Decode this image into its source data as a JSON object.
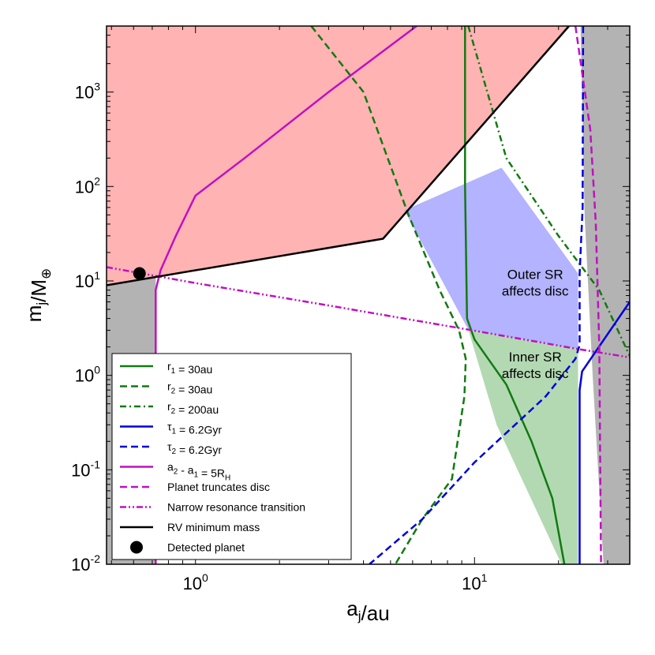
{
  "chart_data": {
    "type": "line",
    "xlabel": "a_j/au",
    "ylabel": "m_j/M_⊕",
    "xscale": "log",
    "yscale": "log",
    "xlim": [
      0.48,
      36
    ],
    "ylim": [
      0.01,
      5000
    ],
    "grid": false,
    "legend_position": "lower-left",
    "x_ticks": [
      {
        "base": "10",
        "exp": "0",
        "value": 1
      },
      {
        "base": "10",
        "exp": "1",
        "value": 10
      }
    ],
    "y_ticks": [
      {
        "base": "10",
        "exp": "-2",
        "value": 0.01
      },
      {
        "base": "10",
        "exp": "-1",
        "value": 0.1
      },
      {
        "base": "10",
        "exp": "0",
        "value": 1
      },
      {
        "base": "10",
        "exp": "1",
        "value": 10
      },
      {
        "base": "10",
        "exp": "2",
        "value": 100
      },
      {
        "base": "10",
        "exp": "3",
        "value": 1000
      }
    ],
    "regions": [
      {
        "name": "excluded-high-mass",
        "color": "#ffb3b3",
        "points": [
          [
            0.48,
            5000
          ],
          [
            21.8,
            5000
          ],
          [
            4.7,
            28
          ],
          [
            0.48,
            9
          ]
        ]
      },
      {
        "name": "outer-sr-affects-disc",
        "color": "#b3b3ff",
        "points": [
          [
            5.6,
            56
          ],
          [
            12.5,
            158
          ],
          [
            23.5,
            12
          ],
          [
            23.5,
            1.9
          ],
          [
            9.5,
            3.05
          ]
        ]
      },
      {
        "name": "inner-sr-affects-disc",
        "color": "#b3d9b3",
        "points": [
          [
            9.5,
            3.05
          ],
          [
            23.5,
            1.9
          ],
          [
            23.5,
            0.01
          ],
          [
            20.5,
            0.01
          ],
          [
            12,
            0.3
          ]
        ]
      },
      {
        "name": "grey-left",
        "color": "#b3b3b3",
        "points": [
          [
            0.48,
            9
          ],
          [
            0.72,
            11
          ],
          [
            0.72,
            0.01
          ],
          [
            0.48,
            0.01
          ]
        ]
      },
      {
        "name": "grey-right",
        "color": "#b3b3b3",
        "points": [
          [
            24,
            5000
          ],
          [
            36,
            5000
          ],
          [
            36,
            0.01
          ],
          [
            29,
            0.01
          ],
          [
            26.5,
            1
          ],
          [
            24.8,
            50
          ]
        ]
      }
    ],
    "series": [
      {
        "name": "r_1 = 30au",
        "color": "#117a11",
        "dash": "solid",
        "points": [
          [
            9.25,
            5000
          ],
          [
            9.25,
            100
          ],
          [
            9.4,
            4
          ],
          [
            10,
            2.4
          ],
          [
            13,
            0.8
          ],
          [
            16,
            0.2
          ],
          [
            19,
            0.05
          ],
          [
            21,
            0.01
          ]
        ]
      },
      {
        "name": "r_2 = 30au",
        "color": "#117a11",
        "dash": "dashed",
        "points": [
          [
            2.6,
            5000
          ],
          [
            4,
            1000
          ],
          [
            5.8,
            50
          ],
          [
            7.5,
            8
          ],
          [
            8.8,
            3
          ],
          [
            9.3,
            1.5
          ],
          [
            9.2,
            0.6
          ],
          [
            8.3,
            0.08
          ],
          [
            6.5,
            0.03
          ],
          [
            5.2,
            0.01
          ]
        ]
      },
      {
        "name": "r_2 = 200au",
        "color": "#117a11",
        "dash": "dashdot",
        "points": [
          [
            9.5,
            5000
          ],
          [
            13,
            200
          ],
          [
            20,
            30
          ],
          [
            28,
            8
          ],
          [
            36,
            1.6
          ]
        ]
      },
      {
        "name": "τ_1 = 6.2Gyr",
        "color": "#0000dd",
        "dash": "solid",
        "points": [
          [
            23.8,
            0.01
          ],
          [
            23.8,
            0.7
          ],
          [
            24.3,
            1.1
          ],
          [
            36,
            6
          ]
        ]
      },
      {
        "name": "τ_2 = 6.2Gyr",
        "color": "#0000dd",
        "dash": "dashed",
        "points": [
          [
            24.5,
            5000
          ],
          [
            24.4,
            60
          ],
          [
            23.8,
            12
          ],
          [
            23.8,
            2.1
          ],
          [
            23,
            1.5
          ],
          [
            18,
            0.6
          ],
          [
            10,
            0.12
          ],
          [
            6.5,
            0.03
          ],
          [
            4.2,
            0.01
          ]
        ]
      },
      {
        "name": "a_2 - a_1 = 5R_H",
        "color": "#c010c0",
        "dash": "solid",
        "points": [
          [
            6.2,
            5000
          ],
          [
            3,
            1000
          ],
          [
            1.5,
            200
          ],
          [
            1.0,
            80
          ],
          [
            0.85,
            30
          ],
          [
            0.75,
            13
          ],
          [
            0.72,
            8
          ],
          [
            0.72,
            0.01
          ]
        ]
      },
      {
        "name": "Planet truncates disc",
        "color": "#c010c0",
        "dash": "dashed",
        "points": [
          [
            23,
            5000
          ],
          [
            26,
            400
          ],
          [
            27.2,
            40
          ],
          [
            28,
            2
          ],
          [
            28.4,
            0.01
          ]
        ]
      },
      {
        "name": "Narrow resonance transition",
        "color": "#c010c0",
        "dash": "dashdotdot",
        "points": [
          [
            0.48,
            14
          ],
          [
            1,
            9.5
          ],
          [
            3,
            5.5
          ],
          [
            9.5,
            3.05
          ],
          [
            23.5,
            1.9
          ],
          [
            36,
            1.55
          ]
        ]
      },
      {
        "name": "RV minimum mass",
        "color": "#000000",
        "dash": "solid",
        "points": [
          [
            0.48,
            9
          ],
          [
            4.7,
            28
          ],
          [
            21.8,
            5000
          ]
        ]
      }
    ],
    "markers": [
      {
        "name": "Detected planet",
        "x": 0.63,
        "y": 12,
        "color": "#000000"
      }
    ],
    "annotations": [
      {
        "lines": [
          "Outer SR",
          "affects disc"
        ],
        "x": 16.5,
        "y": 10.5
      },
      {
        "lines": [
          "Inner SR",
          "affects disc"
        ],
        "x": 16.5,
        "y": 1.4
      }
    ]
  }
}
